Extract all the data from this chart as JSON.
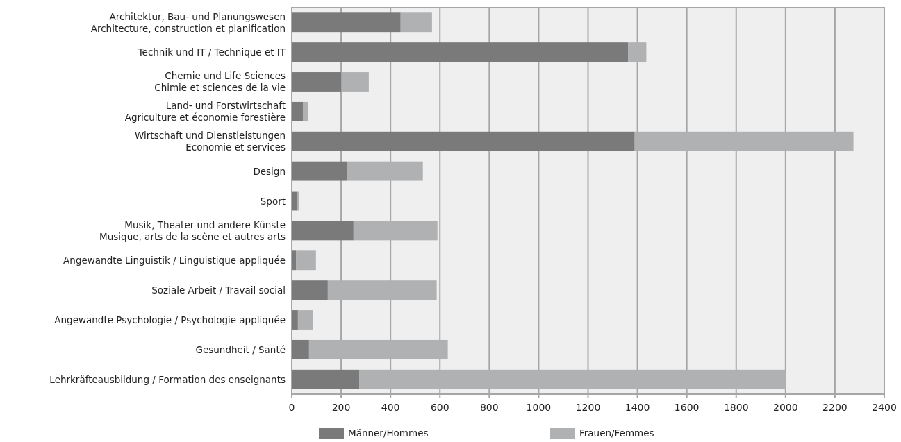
{
  "chart_data": {
    "type": "bar",
    "orientation": "horizontal",
    "stacked": true,
    "categories": [
      "Architektur, Bau- und Planungswesen\nArchitecture, construction et planification",
      "Technik und IT / Technique et IT",
      "Chemie und Life Sciences\nChimie et sciences de la vie",
      "Land- und Forstwirtschaft\nAgriculture et économie forestière",
      "Wirtschaft und Dienstleistungen\nEconomie et services",
      "Design",
      "Sport",
      "Musik, Theater und andere Künste\nMusique, arts de la scène et autres arts",
      "Angewandte Linguistik / Linguistique appliquée",
      "Soziale Arbeit / Travail social",
      "Angewandte Psychologie / Psychologie appliquée",
      "Gesundheit / Santé",
      "Lehrkräfteausbildung / Formation des enseignants"
    ],
    "series": [
      {
        "name": "Männer/Hommes",
        "color": "#7a7a7a",
        "values": [
          441,
          1363,
          201,
          45,
          1389,
          225,
          20,
          250,
          17,
          146,
          25,
          70,
          273
        ]
      },
      {
        "name": "Frauen/Femmes",
        "color": "#b0b1b3",
        "values": [
          127,
          73,
          111,
          22,
          886,
          306,
          11,
          340,
          81,
          441,
          62,
          562,
          1727
        ]
      }
    ],
    "xlim": [
      0,
      2400
    ],
    "xticks": [
      0,
      200,
      400,
      600,
      800,
      1000,
      1200,
      1400,
      1600,
      1800,
      2000,
      2200,
      2400
    ],
    "grid": "x",
    "legend": "bottom"
  }
}
